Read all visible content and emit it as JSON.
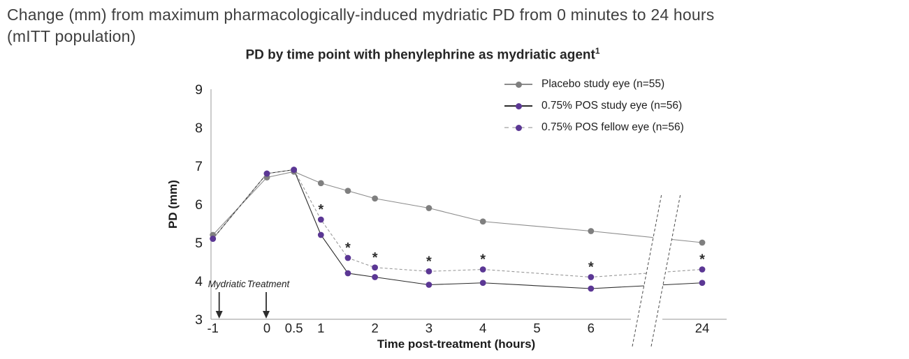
{
  "caption": {
    "line1": "Change (mm) from maximum pharmacologically-induced mydriatic PD from 0 minutes to 24 hours",
    "line2": "(mITT population)"
  },
  "colors": {
    "purple_marker": "#5b3794",
    "gray_marker": "#7f7f7f",
    "asterisk": "#2e2e2e",
    "axis": "#ababab",
    "text_dark": "#262626"
  },
  "chart_data": {
    "type": "line",
    "title": "PD by time point with phenylephrine as mydriatic agent",
    "title_superscript": "1",
    "xlabel": "Time post-treatment (hours)",
    "ylabel": "PD (mm)",
    "ylim": [
      3,
      9
    ],
    "y_ticks": [
      9,
      8,
      7,
      6,
      5,
      4,
      3
    ],
    "x_ticks": [
      -1,
      0,
      0.5,
      1,
      2,
      3,
      4,
      5,
      6,
      24
    ],
    "x_tick_labels": [
      "-1",
      "0",
      "0.5",
      "1",
      "2",
      "3",
      "4",
      "5",
      "6",
      "24"
    ],
    "axis_break_between": [
      6,
      24
    ],
    "grid": false,
    "legend_position": "top-right",
    "x": [
      -1,
      0,
      0.5,
      1,
      1.5,
      2,
      3,
      4,
      6,
      24
    ],
    "series": [
      {
        "name": "Placebo study eye (n=55)",
        "values": [
          5.2,
          6.7,
          6.85,
          6.55,
          6.35,
          6.15,
          5.9,
          5.55,
          5.3,
          5.0
        ],
        "marker_color": "#7f7f7f",
        "line_color": "#8c8c8c",
        "line_style": "solid"
      },
      {
        "name": "0.75% POS study eye (n=56)",
        "values": [
          5.1,
          6.8,
          6.9,
          5.2,
          4.2,
          4.1,
          3.9,
          3.95,
          3.8,
          3.95
        ],
        "marker_color": "#5b3794",
        "line_color": "#2b2b2b",
        "line_style": "solid"
      },
      {
        "name": "0.75% POS fellow eye (n=56)",
        "values": [
          5.1,
          6.8,
          6.9,
          5.6,
          4.6,
          4.35,
          4.25,
          4.3,
          4.1,
          4.3
        ],
        "marker_color": "#5b3794",
        "line_color": "#999999",
        "line_style": "dashed",
        "significance_marks_x": [
          1,
          1.5,
          2,
          3,
          4,
          6,
          24
        ],
        "significance_symbol": "*"
      }
    ],
    "annotations": [
      {
        "text": "Mydriatic",
        "x": -1,
        "style": "italic",
        "arrow": "down"
      },
      {
        "text": "Treatment",
        "x": 0,
        "style": "italic",
        "arrow": "down"
      }
    ]
  }
}
